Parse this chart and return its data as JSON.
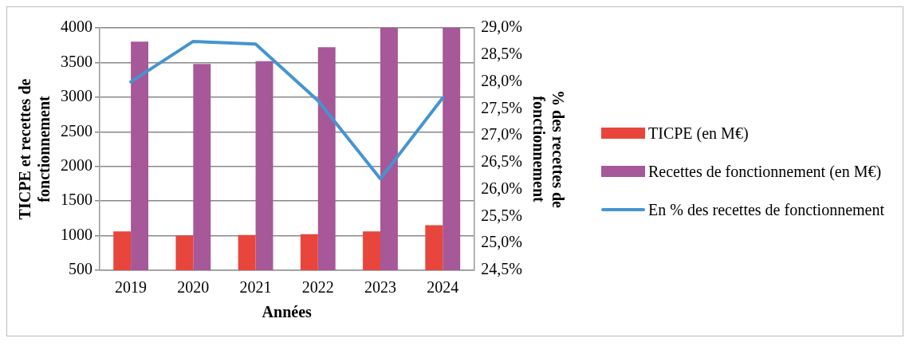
{
  "chart_data": {
    "type": "bar",
    "xlabel": "Années",
    "ylabel": "TICPE et recettes de fonctionnement",
    "y2label": "% des recettes de fonctionnement",
    "categories": [
      "2019",
      "2020",
      "2021",
      "2022",
      "2023",
      "2024"
    ],
    "series": [
      {
        "name": "TICPE (en M€)",
        "color": "#e8453c",
        "values": [
          1060,
          1000,
          1010,
          1020,
          1060,
          1150
        ]
      },
      {
        "name": "Recettes de fonctionnement (en M€)",
        "color": "#a65898",
        "values": [
          3800,
          3480,
          3520,
          3720,
          4000,
          4000
        ]
      },
      {
        "name": "En % des recettes de fonctionnement",
        "type": "line",
        "axis": "y2",
        "color": "#4595cf",
        "marker": "none",
        "values": [
          28.0,
          28.75,
          28.7,
          27.65,
          26.2,
          27.7
        ]
      }
    ],
    "ylim": [
      500,
      4000
    ],
    "yticks": [
      500,
      1000,
      1500,
      2000,
      2500,
      3000,
      3500,
      4000
    ],
    "y2lim": [
      24.5,
      29.0
    ],
    "y2ticks": [
      {
        "value": 24.5,
        "label": "24,5%"
      },
      {
        "value": 25,
        "label": "25,0%"
      },
      {
        "value": 25.5,
        "label": "25,5%"
      },
      {
        "value": 26,
        "label": "26,0%"
      },
      {
        "value": 26.5,
        "label": "26,5%"
      },
      {
        "value": 27,
        "label": "27,0%"
      },
      {
        "value": 27.5,
        "label": "27,5%"
      },
      {
        "value": 28,
        "label": "28,0%"
      },
      {
        "value": 28.5,
        "label": "28,5%"
      },
      {
        "value": 29,
        "label": "29,0%"
      }
    ],
    "grid": "y",
    "legend": "right"
  }
}
